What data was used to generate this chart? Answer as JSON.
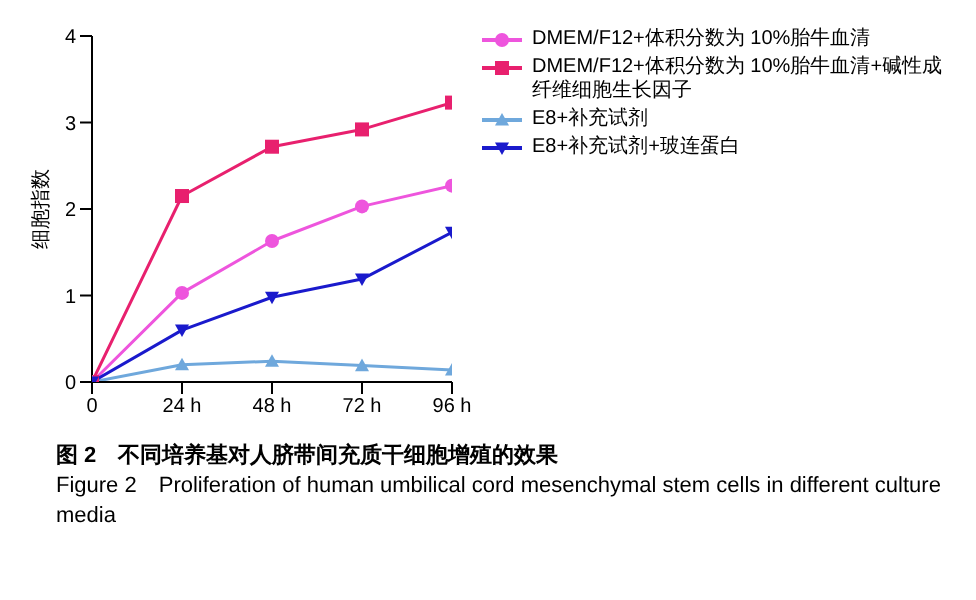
{
  "chart_data": {
    "type": "line",
    "categories": [
      "0",
      "24 h",
      "48 h",
      "72 h",
      "96 h"
    ],
    "ylabel": "细胞指数",
    "ylim": [
      0,
      4
    ],
    "yticks": [
      0,
      1,
      2,
      3,
      4
    ],
    "grid": false,
    "legend": "right",
    "series": [
      {
        "name": "DMEM/F12+体积分数为 10%胎牛血清",
        "color": "#ee55dd",
        "marker": "circle",
        "values": [
          0,
          1.03,
          1.63,
          2.03,
          2.27
        ]
      },
      {
        "name": "DMEM/F12+体积分数为 10%胎牛血清+碱性成纤维细胞生长因子",
        "color": "#e8206e",
        "marker": "square",
        "values": [
          0,
          2.15,
          2.72,
          2.92,
          3.23
        ]
      },
      {
        "name": "E8+补充试剂",
        "color": "#6fa8dc",
        "marker": "triangle",
        "values": [
          0,
          0.2,
          0.24,
          0.19,
          0.14
        ]
      },
      {
        "name": "E8+补充试剂+玻连蛋白",
        "color": "#1a1acc",
        "marker": "triangle-down",
        "values": [
          0,
          0.6,
          0.98,
          1.19,
          1.73
        ]
      }
    ],
    "annotations": [
      "图 2　不同培养基对人脐带间充质干细胞增殖的效果",
      "Figure 2　Proliferation of human umbilical cord mesenchymal stem cells in different culture media"
    ]
  }
}
